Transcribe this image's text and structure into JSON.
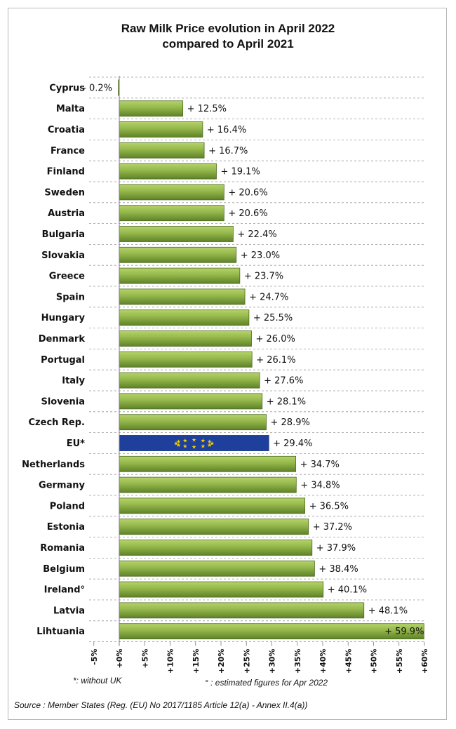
{
  "chart_data": {
    "type": "bar",
    "orientation": "horizontal",
    "title_line1": "Raw Milk Price evolution in April 2022",
    "title_line2": "compared to April 2021",
    "categories": [
      "Cyprus",
      "Malta",
      "Croatia",
      "France",
      "Finland",
      "Sweden",
      "Austria",
      "Bulgaria",
      "Slovakia",
      "Greece",
      "Spain",
      "Hungary",
      "Denmark",
      "Portugal",
      "Italy",
      "Slovenia",
      "Czech Rep.",
      "EU*",
      "Netherlands",
      "Germany",
      "Poland",
      "Estonia",
      "Romania",
      "Belgium",
      "Ireland°",
      "Latvia",
      "Lihtuania"
    ],
    "values": [
      -0.2,
      12.5,
      16.4,
      16.7,
      19.1,
      20.6,
      20.6,
      22.4,
      23.0,
      23.7,
      24.7,
      25.5,
      26.0,
      26.1,
      27.6,
      28.1,
      28.9,
      29.4,
      34.7,
      34.8,
      36.5,
      37.2,
      37.9,
      38.4,
      40.1,
      48.1,
      59.9
    ],
    "value_labels": [
      "- 0.2%",
      "+ 12.5%",
      "+ 16.4%",
      "+ 16.7%",
      "+ 19.1%",
      "+ 20.6%",
      "+ 20.6%",
      "+ 22.4%",
      "+ 23.0%",
      "+ 23.7%",
      "+ 24.7%",
      "+ 25.5%",
      "+ 26.0%",
      "+ 26.1%",
      "+ 27.6%",
      "+ 28.1%",
      "+ 28.9%",
      "+ 29.4%",
      "+ 34.7%",
      "+ 34.8%",
      "+ 36.5%",
      "+ 37.2%",
      "+ 37.9%",
      "+ 38.4%",
      "+ 40.1%",
      "+ 48.1%",
      "+ 59.9%"
    ],
    "highlight_category": "EU*",
    "xlim": [
      -5,
      60
    ],
    "x_ticks": [
      -5,
      0,
      5,
      10,
      15,
      20,
      25,
      30,
      35,
      40,
      45,
      50,
      55,
      60
    ],
    "x_tick_labels": [
      "-5%",
      "+0%",
      "+5%",
      "+10%",
      "+15%",
      "+20%",
      "+25%",
      "+30%",
      "+35%",
      "+40%",
      "+45%",
      "+50%",
      "+55%",
      "+60%"
    ],
    "grid": "dashed horizontal between rows",
    "legend": "none"
  },
  "colors": {
    "bar_top": "#b5d36a",
    "bar_bottom": "#5f8229",
    "bar_stroke": "#4c6a1e",
    "eu_bar": "#1f3f9c",
    "eu_star": "#f2d100",
    "grid": "#9a9a9a"
  },
  "notes": {
    "without_uk": "*: without UK",
    "ireland_estimate": "° : estimated figures for Apr 2022"
  },
  "source": "Source : Member States (Reg. (EU) No 2017/1185 Article 12(a) - Annex II.4(a))"
}
